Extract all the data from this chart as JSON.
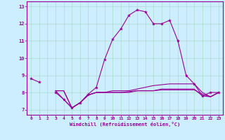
{
  "xlabel": "Windchill (Refroidissement éolien,°C)",
  "ylabel": "",
  "background_color": "#cceeff",
  "grid_color": "#aaddcc",
  "line_color": "#990099",
  "xlim": [
    -0.5,
    23.5
  ],
  "ylim": [
    6.7,
    13.3
  ],
  "yticks": [
    7,
    8,
    9,
    10,
    11,
    12,
    13
  ],
  "xticks": [
    0,
    1,
    2,
    3,
    4,
    5,
    6,
    7,
    8,
    9,
    10,
    11,
    12,
    13,
    14,
    15,
    16,
    17,
    18,
    19,
    20,
    21,
    22,
    23
  ],
  "series": [
    [
      8.8,
      8.6,
      null,
      8.0,
      7.6,
      7.1,
      7.4,
      7.9,
      8.3,
      9.9,
      11.1,
      11.7,
      12.5,
      12.8,
      12.7,
      12.0,
      12.0,
      12.2,
      11.0,
      9.0,
      8.5,
      7.8,
      8.0,
      8.0
    ],
    [
      null,
      null,
      null,
      8.1,
      8.1,
      7.1,
      7.4,
      7.85,
      8.0,
      8.0,
      8.1,
      8.1,
      8.1,
      8.2,
      8.3,
      8.4,
      8.45,
      8.5,
      8.5,
      8.5,
      8.5,
      8.0,
      7.75,
      8.0
    ],
    [
      null,
      null,
      null,
      8.1,
      7.6,
      7.1,
      7.4,
      7.85,
      8.0,
      8.0,
      8.0,
      8.0,
      8.0,
      8.1,
      8.1,
      8.1,
      8.2,
      8.2,
      8.2,
      8.2,
      8.2,
      7.8,
      7.75,
      8.0
    ],
    [
      null,
      null,
      null,
      8.1,
      8.1,
      7.1,
      7.4,
      7.85,
      8.0,
      8.0,
      8.0,
      8.0,
      8.05,
      8.1,
      8.1,
      8.1,
      8.15,
      8.15,
      8.15,
      8.15,
      8.15,
      7.9,
      7.75,
      8.0
    ]
  ]
}
